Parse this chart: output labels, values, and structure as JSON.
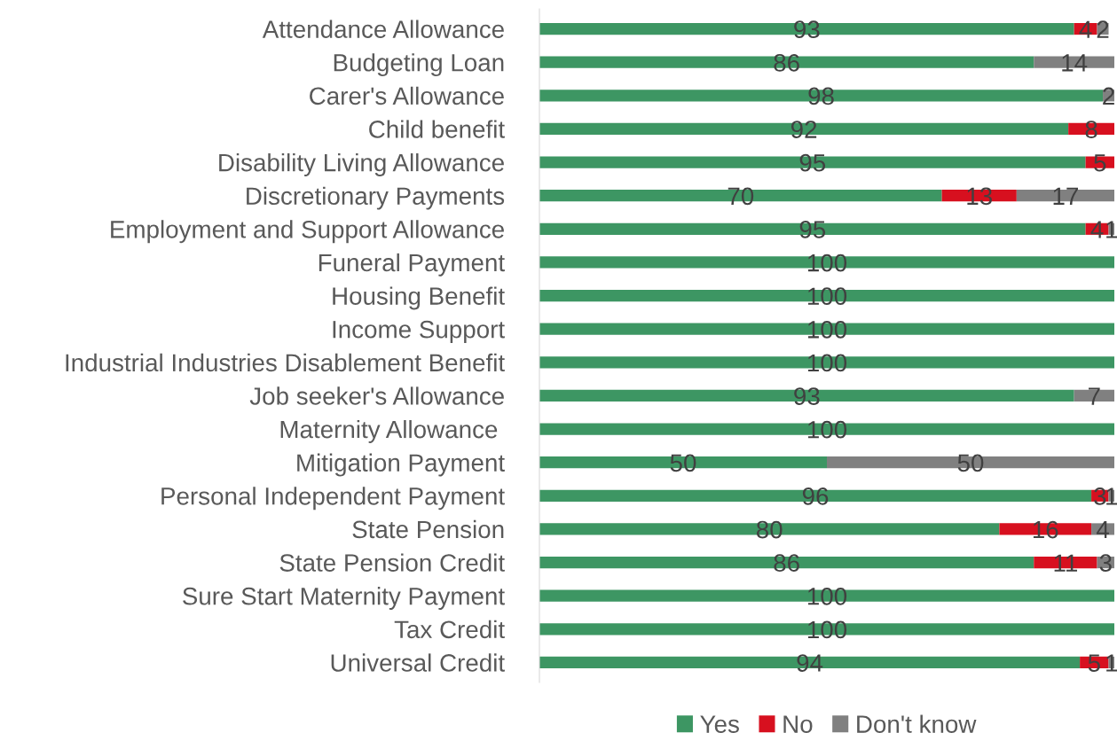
{
  "chart_data": {
    "type": "bar",
    "orientation": "horizontal",
    "stacked": true,
    "data_labels": true,
    "grid": false,
    "legend": "bottom",
    "tick_labels": "y",
    "xlim": [
      0,
      100
    ],
    "categories": [
      "Attendance Allowance",
      "Budgeting Loan",
      "Carer's Allowance",
      "Child benefit",
      "Disability Living Allowance",
      "Discretionary Payments",
      "Employment and Support Allowance",
      "Funeral Payment",
      "Housing Benefit",
      "Income Support",
      "Industrial Industries Disablement Benefit",
      "Job seeker's Allowance",
      "Maternity Allowance ",
      "Mitigation Payment",
      "Personal Independent Payment",
      "State Pension",
      "State Pension Credit",
      "Sure Start Maternity Payment",
      "Tax Credit",
      "Universal Credit"
    ],
    "series": [
      {
        "name": "Yes",
        "color": "#3d9663",
        "values": [
          93,
          86,
          98,
          92,
          95,
          70,
          95,
          100,
          100,
          100,
          100,
          93,
          100,
          50,
          96,
          80,
          86,
          100,
          100,
          94
        ]
      },
      {
        "name": "No",
        "color": "#d7101f",
        "values": [
          4,
          null,
          null,
          8,
          5,
          13,
          4,
          null,
          null,
          null,
          null,
          null,
          null,
          null,
          3,
          16,
          11,
          null,
          null,
          5
        ]
      },
      {
        "name": "Don't know",
        "color": "#808080",
        "values": [
          2,
          14,
          2,
          null,
          null,
          17,
          1,
          null,
          null,
          null,
          null,
          7,
          null,
          50,
          1,
          4,
          3,
          null,
          null,
          1
        ]
      }
    ]
  }
}
